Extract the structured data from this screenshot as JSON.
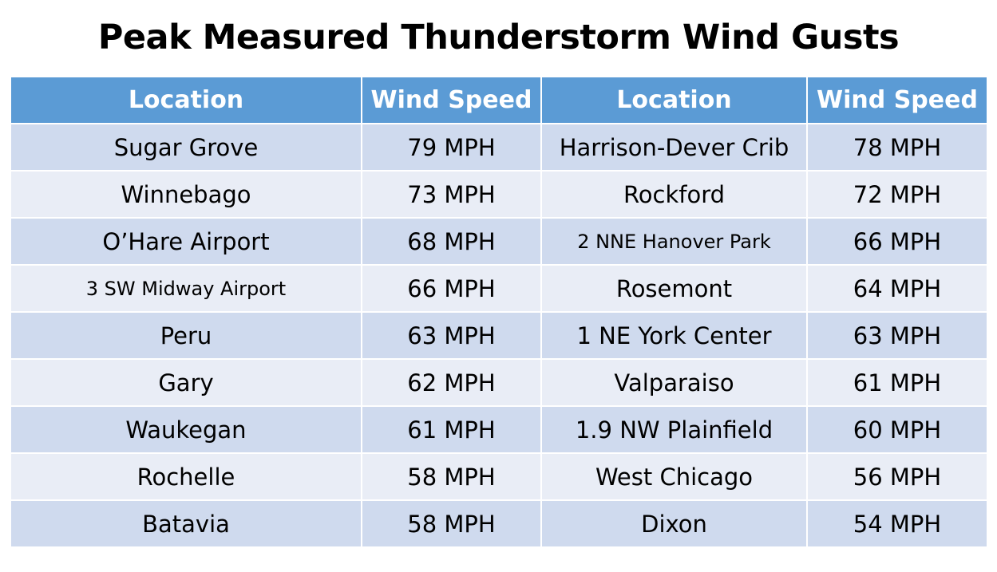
{
  "title": "Peak Measured Thunderstorm Wind Gusts",
  "table": {
    "headers": [
      "Location",
      "Wind Speed",
      "Location",
      "Wind Speed"
    ],
    "rows": [
      {
        "loc1": "Sugar Grove",
        "spd1": "79 MPH",
        "loc2": "Harrison-Dever Crib",
        "spd2": "78 MPH"
      },
      {
        "loc1": "Winnebago",
        "spd1": "73 MPH",
        "loc2": "Rockford",
        "spd2": "72 MPH"
      },
      {
        "loc1": "O’Hare Airport",
        "spd1": "68 MPH",
        "loc2": "2 NNE Hanover Park",
        "spd2": "66 MPH"
      },
      {
        "loc1": "3 SW Midway Airport",
        "spd1": "66 MPH",
        "loc2": "Rosemont",
        "spd2": "64 MPH"
      },
      {
        "loc1": "Peru",
        "spd1": "63 MPH",
        "loc2": "1 NE York Center",
        "spd2": "63 MPH"
      },
      {
        "loc1": "Gary",
        "spd1": "62 MPH",
        "loc2": "Valparaiso",
        "spd2": "61 MPH"
      },
      {
        "loc1": "Waukegan",
        "spd1": "61 MPH",
        "loc2": "1.9 NW Plainfield",
        "spd2": "60 MPH"
      },
      {
        "loc1": "Rochelle",
        "spd1": "58 MPH",
        "loc2": "West Chicago",
        "spd2": "56 MPH"
      },
      {
        "loc1": "Batavia",
        "spd1": "58 MPH",
        "loc2": "Dixon",
        "spd2": "54 MPH"
      }
    ]
  },
  "colors": {
    "header_bg": "#5b9bd5",
    "row_band_dark": "#cfdaee",
    "row_band_light": "#e9edf6"
  }
}
